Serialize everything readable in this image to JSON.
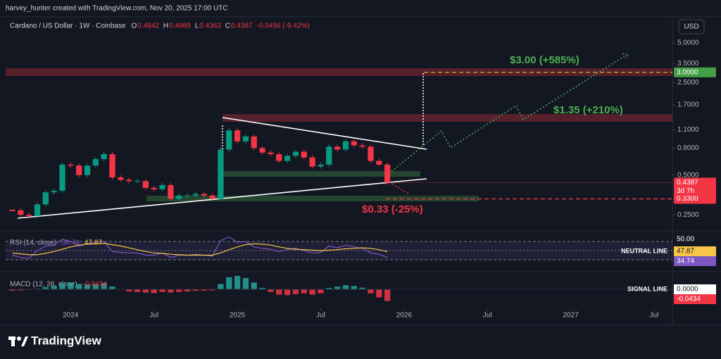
{
  "header": "harvey_hunter created with TradingView.com, Nov 20, 2025 17:00 UTC",
  "logo": "TradingView",
  "chart_data": [
    {
      "type": "candlestick",
      "title": "Cardano / US Dollar · 1W · Coinbase",
      "ohlc": [
        {
          "label": "O",
          "value": "0.4842"
        },
        {
          "label": "H",
          "value": "0.4989"
        },
        {
          "label": "L",
          "value": "0.4363"
        },
        {
          "label": "C",
          "value": "0.4387"
        }
      ],
      "change": "-0.0456 (-9.42%)",
      "currency": "USD",
      "countdown": "3d 7h",
      "x": [
        2023.65,
        2023.7,
        2023.75,
        2023.8,
        2023.85,
        2023.9,
        2023.95,
        2024.0,
        2024.05,
        2024.1,
        2024.15,
        2024.2,
        2024.25,
        2024.3,
        2024.35,
        2024.4,
        2024.45,
        2024.5,
        2024.55,
        2024.6,
        2024.65,
        2024.7,
        2024.75,
        2024.8,
        2024.85,
        2024.9,
        2024.95,
        2025.0,
        2025.05,
        2025.1,
        2025.15,
        2025.2,
        2025.25,
        2025.3,
        2025.35,
        2025.4,
        2025.45,
        2025.5,
        2025.55,
        2025.6,
        2025.65,
        2025.7,
        2025.75,
        2025.8,
        2025.85,
        2025.9
      ],
      "series": [
        {
          "values": [
            0.27,
            0.25,
            0.245,
            0.3,
            0.37,
            0.38,
            0.6,
            0.59,
            0.5,
            0.59,
            0.66,
            0.72,
            0.48,
            0.46,
            0.45,
            0.45,
            0.4,
            0.39,
            0.42,
            0.33,
            0.35,
            0.35,
            0.36,
            0.35,
            0.33,
            0.78,
            1.09,
            0.9,
            0.98,
            0.8,
            0.74,
            0.72,
            0.64,
            0.7,
            0.75,
            0.68,
            0.58,
            0.6,
            0.82,
            0.78,
            0.9,
            0.84,
            0.82,
            0.64,
            0.6,
            0.4387
          ],
          "up_color": "#089981",
          "down_color": "#f23645"
        }
      ],
      "log_scale": true,
      "xlim": [
        2023.61,
        2027.61
      ],
      "ylim": [
        0.196,
        5.87
      ],
      "yticks": [
        {
          "value": 5,
          "label": "5.0000"
        },
        {
          "value": 3.5,
          "label": "3.5000"
        },
        {
          "value": 2.5,
          "label": "2.5000"
        },
        {
          "value": 1.7,
          "label": "1.7000"
        },
        {
          "value": 1.1,
          "label": "1.1000"
        },
        {
          "value": 0.8,
          "label": "0.8000"
        },
        {
          "value": 0.5,
          "label": "0.5000"
        },
        {
          "value": 0.25,
          "label": "0.2500"
        }
      ],
      "levels": [
        {
          "value": 3,
          "label": "3.0000",
          "color": "#43a047",
          "line_color": "#c9a227"
        },
        {
          "value": 0.33,
          "label": "0.3300",
          "color": "#f23645",
          "line_color": "#f23645"
        }
      ],
      "annotations": [
        {
          "text": "$3.00 (+585%)",
          "color": "#4caf50"
        },
        {
          "text": "$1.35 (+210%)",
          "color": "#4caf50"
        },
        {
          "text": "$0.33 (-25%)",
          "color": "#f23645"
        }
      ]
    },
    {
      "type": "line",
      "title": "RSI (14, close)",
      "x": [
        2023.65,
        2023.7,
        2023.75,
        2023.8,
        2023.85,
        2023.9,
        2023.95,
        2024.0,
        2024.05,
        2024.1,
        2024.15,
        2024.2,
        2024.25,
        2024.3,
        2024.35,
        2024.4,
        2024.45,
        2024.5,
        2024.55,
        2024.6,
        2024.65,
        2024.7,
        2024.75,
        2024.8,
        2024.85,
        2024.9,
        2024.95,
        2025.0,
        2025.05,
        2025.1,
        2025.15,
        2025.2,
        2025.25,
        2025.3,
        2025.35,
        2025.4,
        2025.45,
        2025.5,
        2025.55,
        2025.6,
        2025.65,
        2025.7,
        2025.75,
        2025.8,
        2025.85,
        2025.9
      ],
      "series": [
        {
          "color": "#7e57c2",
          "values": [
            40,
            35,
            33,
            50,
            60,
            62,
            75,
            70,
            60,
            65,
            68,
            70,
            48,
            46,
            45,
            45,
            40,
            40,
            45,
            35,
            40,
            40,
            42,
            40,
            38,
            72,
            80,
            68,
            70,
            58,
            55,
            53,
            48,
            52,
            55,
            50,
            45,
            46,
            60,
            56,
            62,
            58,
            55,
            45,
            42,
            34.74
          ]
        },
        {
          "color": "#f7c548",
          "values": [
            45,
            43,
            41,
            41,
            44,
            48,
            53,
            58,
            62,
            64,
            65,
            66,
            63,
            60,
            56,
            52,
            48,
            45,
            44,
            42,
            41,
            40,
            40,
            40,
            40,
            45,
            52,
            58,
            63,
            65,
            64,
            62,
            58,
            55,
            53,
            52,
            51,
            50,
            51,
            52,
            54,
            55,
            56,
            55,
            52,
            47.87
          ]
        }
      ],
      "xlim": [
        2023.61,
        2027.61
      ],
      "ylim": [
        10,
        90
      ],
      "band": [
        30,
        70
      ],
      "neutral_line": {
        "value": 50,
        "label": "50.00",
        "text": "NEUTRAL LINE"
      }
    },
    {
      "type": "bar",
      "title": "MACD (12, 26, close)",
      "x": [
        2023.65,
        2023.7,
        2023.75,
        2023.8,
        2023.85,
        2023.9,
        2023.95,
        2024.0,
        2024.05,
        2024.1,
        2024.15,
        2024.2,
        2024.25,
        2024.3,
        2024.35,
        2024.4,
        2024.45,
        2024.5,
        2024.55,
        2024.6,
        2024.65,
        2024.7,
        2024.75,
        2024.8,
        2024.85,
        2024.9,
        2024.95,
        2025.0,
        2025.05,
        2025.1,
        2025.15,
        2025.2,
        2025.25,
        2025.3,
        2025.35,
        2025.4,
        2025.45,
        2025.5,
        2025.55,
        2025.6,
        2025.65,
        2025.7,
        2025.75,
        2025.8,
        2025.85,
        2025.9
      ],
      "values": [
        -0.005,
        -0.004,
        -0.002,
        0.002,
        0.008,
        0.012,
        0.022,
        0.025,
        0.02,
        0.018,
        0.02,
        0.024,
        0.01,
        -0.002,
        -0.008,
        -0.01,
        -0.012,
        -0.014,
        -0.01,
        -0.012,
        -0.01,
        -0.008,
        -0.006,
        -0.005,
        -0.004,
        0.02,
        0.045,
        0.05,
        0.042,
        0.025,
        0.005,
        -0.01,
        -0.02,
        -0.022,
        -0.018,
        -0.015,
        -0.02,
        -0.015,
        0.005,
        0.01,
        0.015,
        0.012,
        0.006,
        -0.015,
        -0.03,
        -0.0434
      ],
      "up_color": "#26a69a",
      "down_color": "#f23645",
      "xlim": [
        2023.61,
        2027.61
      ],
      "ylim": [
        -0.05,
        0.055
      ],
      "signal_line": {
        "value": 0,
        "label": "0.0000",
        "text": "SIGNAL LINE"
      },
      "xticks": [
        {
          "value": 2024.0,
          "label": "2024"
        },
        {
          "value": 2024.5,
          "label": "Jul"
        },
        {
          "value": 2025.0,
          "label": "2025"
        },
        {
          "value": 2025.5,
          "label": "Jul"
        },
        {
          "value": 2026.0,
          "label": "2026"
        },
        {
          "value": 2026.5,
          "label": "Jul"
        },
        {
          "value": 2027.0,
          "label": "2027"
        },
        {
          "value": 2027.5,
          "label": "Jul"
        }
      ]
    }
  ]
}
